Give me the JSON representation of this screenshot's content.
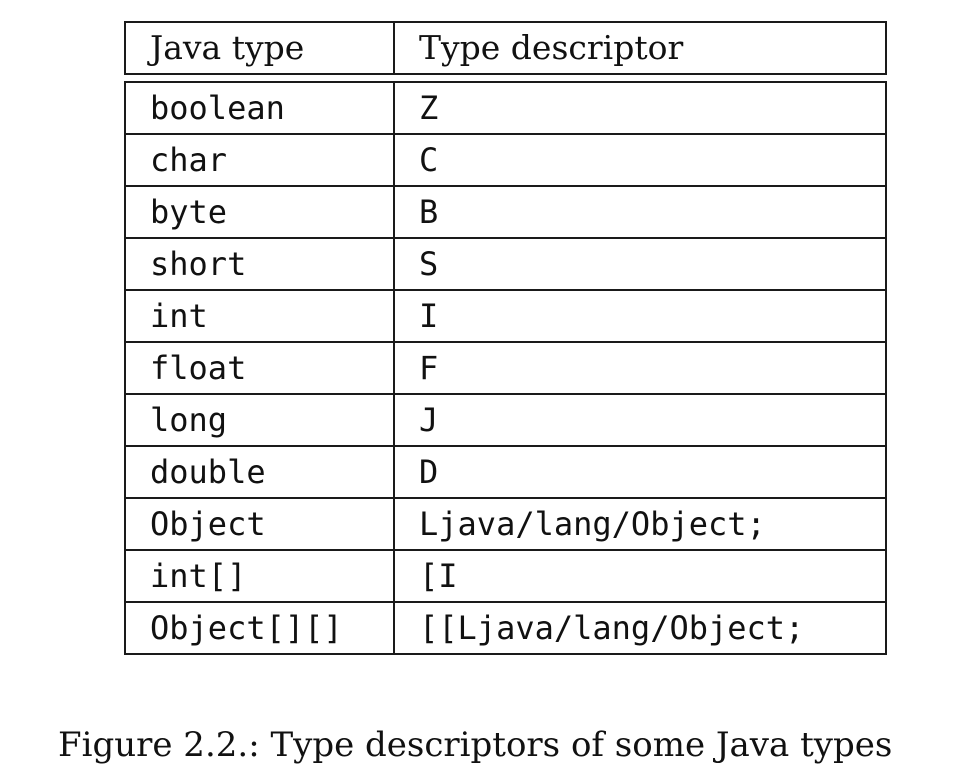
{
  "table": {
    "headers": [
      "Java type",
      "Type descriptor"
    ],
    "rows": [
      [
        "boolean",
        "Z"
      ],
      [
        "char",
        "C"
      ],
      [
        "byte",
        "B"
      ],
      [
        "short",
        "S"
      ],
      [
        "int",
        "I"
      ],
      [
        "float",
        "F"
      ],
      [
        "long",
        "J"
      ],
      [
        "double",
        "D"
      ],
      [
        "Object",
        "Ljava/lang/Object;"
      ],
      [
        "int[]",
        "[I"
      ],
      [
        "Object[][]",
        "[[Ljava/lang/Object;"
      ]
    ]
  },
  "caption": "Figure 2.2.: Type descriptors of some Java types"
}
